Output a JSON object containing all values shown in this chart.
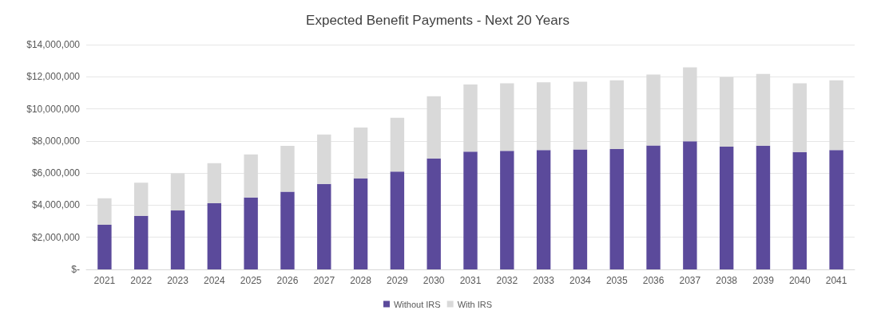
{
  "chart_data": {
    "type": "bar",
    "title": "Expected Benefit Payments - Next 20 Years",
    "stacked": true,
    "grid": "y",
    "legend": "bottom",
    "categories": [
      "2021",
      "2022",
      "2023",
      "2024",
      "2025",
      "2026",
      "2027",
      "2028",
      "2029",
      "2030",
      "2031",
      "2032",
      "2033",
      "2034",
      "2035",
      "2036",
      "2037",
      "2038",
      "2039",
      "2040",
      "2041"
    ],
    "series": [
      {
        "name": "Without IRS",
        "color": "#5b4a9b",
        "values": [
          2780000,
          3340000,
          3670000,
          4120000,
          4480000,
          4840000,
          5330000,
          5670000,
          6100000,
          6910000,
          7330000,
          7380000,
          7430000,
          7470000,
          7500000,
          7720000,
          7980000,
          7640000,
          7710000,
          7310000,
          7430000
        ]
      },
      {
        "name": "With IRS",
        "color": "#d9d9d9",
        "values": [
          1650000,
          2060000,
          2310000,
          2500000,
          2680000,
          2850000,
          3070000,
          3170000,
          3350000,
          3870000,
          4190000,
          4210000,
          4230000,
          4220000,
          4280000,
          4420000,
          4610000,
          4340000,
          4460000,
          4280000,
          4350000
        ]
      }
    ],
    "ylim": [
      0,
      14000000
    ],
    "yticks": [
      {
        "value": 0,
        "label": "$-"
      },
      {
        "value": 2000000,
        "label": "$2,000,000"
      },
      {
        "value": 4000000,
        "label": "$4,000,000"
      },
      {
        "value": 6000000,
        "label": "$6,000,000"
      },
      {
        "value": 8000000,
        "label": "$8,000,000"
      },
      {
        "value": 10000000,
        "label": "$10,000,000"
      },
      {
        "value": 12000000,
        "label": "$12,000,000"
      },
      {
        "value": 14000000,
        "label": "$14,000,000"
      }
    ]
  }
}
